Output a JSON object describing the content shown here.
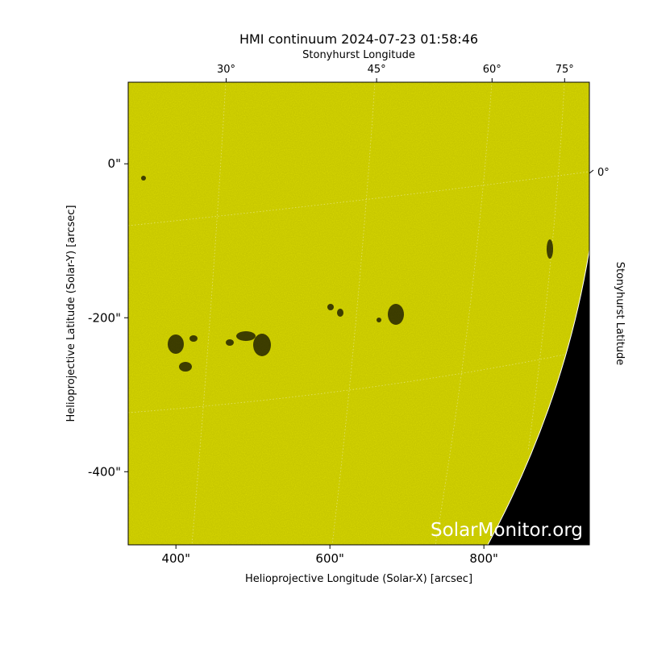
{
  "chart_data": {
    "type": "image",
    "title": "HMI continuum 2024-07-23 01:58:46",
    "xlabel": "Helioprojective Longitude (Solar-X) [arcsec]",
    "ylabel": "Helioprojective Latitude (Solar-Y) [arcsec]",
    "top_label": "Stonyhurst Longitude",
    "right_label": "Stonyhurst Latitude",
    "xlim": [
      338,
      937
    ],
    "ylim": [
      -495,
      106
    ],
    "xticks": [
      {
        "value": 400,
        "label": "400\""
      },
      {
        "value": 600,
        "label": "600\""
      },
      {
        "value": 800,
        "label": "800\""
      }
    ],
    "yticks": [
      {
        "value": 0,
        "label": "0\""
      },
      {
        "value": -200,
        "label": "-200\""
      },
      {
        "value": -400,
        "label": "-400\""
      }
    ],
    "top_ticks": [
      {
        "value": 30,
        "label": "30°"
      },
      {
        "value": 45,
        "label": "45°"
      },
      {
        "value": 60,
        "label": "60°"
      },
      {
        "value": 75,
        "label": "75°"
      }
    ],
    "right_ticks": [
      {
        "value": 0,
        "label": "0°"
      }
    ],
    "watermark": "SolarMonitor.org"
  }
}
